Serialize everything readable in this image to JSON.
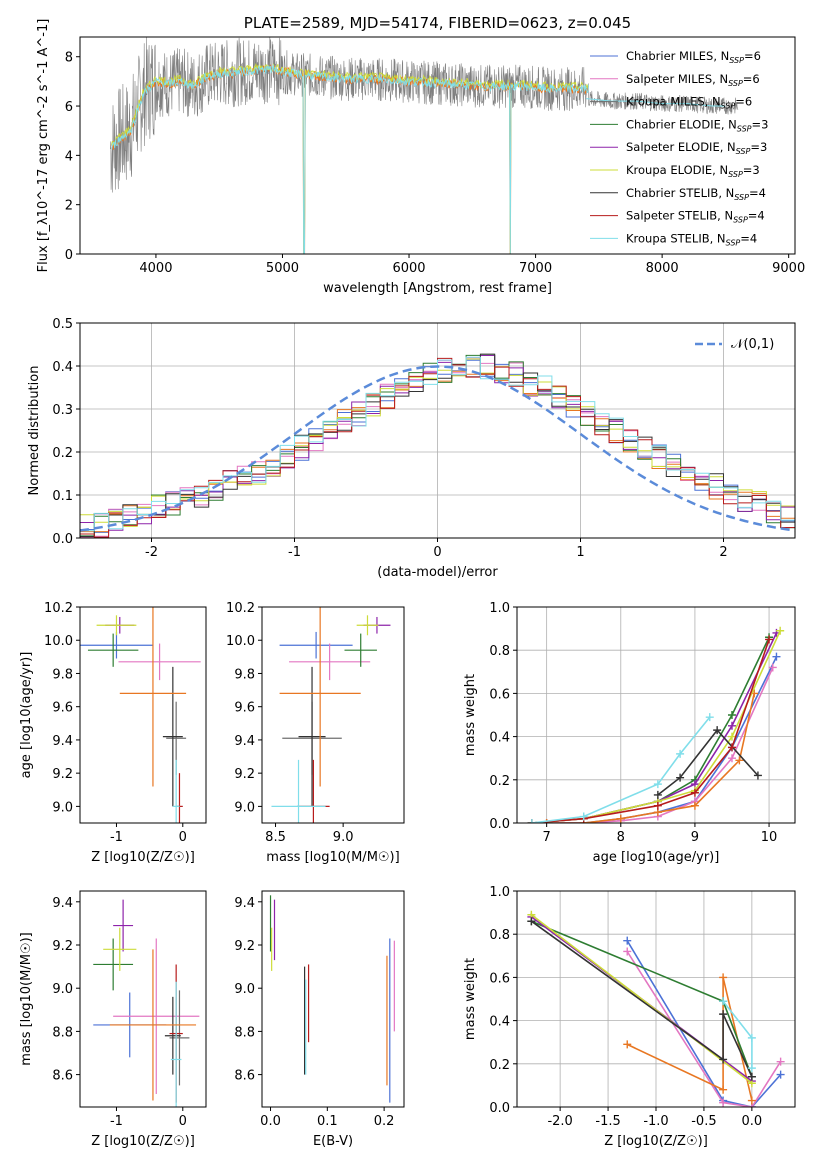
{
  "colors": {
    "chab_miles": "#4c72d6",
    "salp_miles": "#e377c2",
    "krou_miles": "#6f6f6f",
    "chab_elodie": "#2e7d32",
    "salp_elodie": "#8e24aa",
    "krou_elodie": "#cddc39",
    "chab_stelib": "#333333",
    "salp_stelib": "#b71c1c",
    "krou_stelib": "#80deea",
    "data": "#7f7f7f",
    "normal": "#5b8bd9",
    "orange": "#e87722"
  },
  "chart_data": [
    {
      "type": "line",
      "title": "PLATE=2589, MJD=54174, FIBERID=0623, z=0.045",
      "xlabel": "wavelength [Angstrom, rest frame]",
      "ylabel": "Flux [f_λ10^-17 erg cm^-2 s^-1 A^-1]",
      "xlim": [
        3400,
        9050
      ],
      "ylim": [
        0,
        8.8
      ],
      "xticks": [
        4000,
        5000,
        6000,
        7000,
        8000,
        9000
      ],
      "yticks": [
        0,
        2,
        4,
        6,
        8
      ],
      "legend": [
        {
          "name": "Chabrier MILES, N",
          "sub": "SSP",
          "eq": "=6",
          "color_key": "chab_miles"
        },
        {
          "name": "Salpeter MILES, N",
          "sub": "SSP",
          "eq": "=6",
          "color_key": "salp_miles"
        },
        {
          "name": "Kroupa MILES, N",
          "sub": "SSP",
          "eq": "=6",
          "color_key": "krou_miles"
        },
        {
          "name": "Chabrier ELODIE, N",
          "sub": "SSP",
          "eq": "=3",
          "color_key": "chab_elodie"
        },
        {
          "name": "Salpeter ELODIE, N",
          "sub": "SSP",
          "eq": "=3",
          "color_key": "salp_elodie"
        },
        {
          "name": "Kroupa ELODIE, N",
          "sub": "SSP",
          "eq": "=3",
          "color_key": "krou_elodie"
        },
        {
          "name": "Chabrier STELIB, N",
          "sub": "SSP",
          "eq": "=4",
          "color_key": "chab_stelib"
        },
        {
          "name": "Salpeter STELIB, N",
          "sub": "SSP",
          "eq": "=4",
          "color_key": "salp_stelib"
        },
        {
          "name": "Kroupa STELIB, N",
          "sub": "SSP",
          "eq": "=4",
          "color_key": "krou_stelib"
        }
      ],
      "model_curve": {
        "x": [
          3650,
          3700,
          3800,
          3900,
          4000,
          4100,
          4200,
          4300,
          4400,
          4500,
          4700,
          4900,
          5100,
          5300,
          5500,
          5700,
          6000,
          6300,
          6600,
          6900,
          7100,
          7300,
          7420
        ],
        "y": [
          4.3,
          4.6,
          5.0,
          6.5,
          7.0,
          6.9,
          7.0,
          6.8,
          7.2,
          7.3,
          7.4,
          7.5,
          7.3,
          7.2,
          7.1,
          7.1,
          7.0,
          6.9,
          6.8,
          6.8,
          6.7,
          6.7,
          6.7
        ]
      },
      "model_dips": [
        [
          5170,
          0.0
        ],
        [
          6800,
          0.0
        ],
        [
          7430,
          0.3
        ]
      ],
      "extended_curve": {
        "x": [
          7400,
          7600,
          7800,
          8000,
          8200,
          8400,
          8500
        ],
        "y": [
          6.3,
          6.2,
          6.2,
          6.1,
          6.1,
          6.0,
          6.0
        ]
      },
      "data_range": [
        3640,
        8600
      ]
    },
    {
      "type": "bar",
      "xlabel": "(data-model)/error",
      "ylabel": "Normed distribution",
      "xlim": [
        -2.5,
        2.5
      ],
      "ylim": [
        0,
        0.5
      ],
      "xticks": [
        -2,
        -1,
        0,
        1,
        2
      ],
      "yticks": [
        0.0,
        0.1,
        0.2,
        0.3,
        0.4,
        0.5
      ],
      "legend_label": "𝒩(0,1)",
      "bin_width": 0.1,
      "bin_start": -2.5,
      "hist": [
        0.03,
        0.03,
        0.04,
        0.05,
        0.06,
        0.07,
        0.08,
        0.09,
        0.1,
        0.11,
        0.13,
        0.14,
        0.15,
        0.17,
        0.19,
        0.21,
        0.23,
        0.25,
        0.27,
        0.29,
        0.31,
        0.33,
        0.35,
        0.36,
        0.38,
        0.39,
        0.4,
        0.4,
        0.4,
        0.39,
        0.38,
        0.36,
        0.35,
        0.33,
        0.31,
        0.29,
        0.27,
        0.25,
        0.23,
        0.21,
        0.19,
        0.17,
        0.15,
        0.13,
        0.12,
        0.1,
        0.09,
        0.08,
        0.06,
        0.05,
        0.04
      ]
    },
    {
      "type": "scatter",
      "xlabel": "Z [log10(Z/Z☉)]",
      "ylabel": "age [log10(age/yr)]",
      "xlim": [
        -1.55,
        0.35
      ],
      "ylim": [
        8.9,
        10.2
      ],
      "xticks": [
        -1,
        0
      ],
      "yticks": [
        9.0,
        9.2,
        9.4,
        9.6,
        9.8,
        10.0,
        10.2
      ],
      "points": [
        {
          "x": -1.0,
          "y": 9.97,
          "xerr": 0.55,
          "yerr": 0.08,
          "c": "chab_miles"
        },
        {
          "x": -0.35,
          "y": 9.87,
          "xerr": 0.62,
          "yerr": 0.11,
          "c": "salp_miles"
        },
        {
          "x": -0.1,
          "y": 9.41,
          "xerr": 0.15,
          "yerr": 0.22,
          "c": "krou_miles"
        },
        {
          "x": -1.05,
          "y": 9.94,
          "xerr": 0.38,
          "yerr": 0.1,
          "c": "chab_elodie"
        },
        {
          "x": -0.95,
          "y": 10.09,
          "xerr": 0.22,
          "yerr": 0.05,
          "c": "salp_elodie"
        },
        {
          "x": -1.0,
          "y": 10.09,
          "xerr": 0.3,
          "yerr": 0.06,
          "c": "krou_elodie"
        },
        {
          "x": -0.15,
          "y": 9.42,
          "xerr": 0.15,
          "yerr": 0.42,
          "c": "chab_stelib"
        },
        {
          "x": -0.05,
          "y": 9.0,
          "xerr": 0.05,
          "yerr": 0.2,
          "c": "salp_stelib"
        },
        {
          "x": -0.1,
          "y": 9.0,
          "xerr": 0.05,
          "yerr": 0.28,
          "c": "krou_stelib"
        },
        {
          "x": -0.45,
          "y": 9.68,
          "xerr": 0.5,
          "yerr": 0.56,
          "c": "orange"
        }
      ]
    },
    {
      "type": "scatter",
      "xlabel": "mass [log10(M/M☉)]",
      "ylabel": "",
      "xlim": [
        8.4,
        9.45
      ],
      "ylim": [
        8.9,
        10.2
      ],
      "xticks": [
        8.5,
        9.0
      ],
      "yticks": [
        9.0,
        9.2,
        9.4,
        9.6,
        9.8,
        10.0,
        10.2
      ],
      "points": [
        {
          "x": 8.8,
          "y": 9.97,
          "xerr": 0.27,
          "yerr": 0.08,
          "c": "chab_miles"
        },
        {
          "x": 8.9,
          "y": 9.87,
          "xerr": 0.3,
          "yerr": 0.11,
          "c": "salp_miles"
        },
        {
          "x": 8.77,
          "y": 9.41,
          "xerr": 0.22,
          "yerr": 0.22,
          "c": "krou_miles"
        },
        {
          "x": 9.13,
          "y": 9.94,
          "xerr": 0.12,
          "yerr": 0.1,
          "c": "chab_elodie"
        },
        {
          "x": 9.25,
          "y": 10.09,
          "xerr": 0.1,
          "yerr": 0.05,
          "c": "salp_elodie"
        },
        {
          "x": 9.18,
          "y": 10.09,
          "xerr": 0.08,
          "yerr": 0.06,
          "c": "krou_elodie"
        },
        {
          "x": 8.77,
          "y": 9.42,
          "xerr": 0.1,
          "yerr": 0.42,
          "c": "chab_stelib"
        },
        {
          "x": 8.78,
          "y": 9.0,
          "xerr": 0.12,
          "yerr": 0.28,
          "c": "salp_stelib"
        },
        {
          "x": 8.67,
          "y": 9.0,
          "xerr": 0.2,
          "yerr": 0.28,
          "c": "krou_stelib"
        },
        {
          "x": 8.83,
          "y": 9.68,
          "xerr": 0.3,
          "yerr": 0.56,
          "c": "orange"
        }
      ]
    },
    {
      "type": "line",
      "xlabel": "age [log10(age/yr)]",
      "ylabel": "mass weight",
      "xlim": [
        6.6,
        10.35
      ],
      "ylim": [
        0,
        1
      ],
      "xticks": [
        7,
        8,
        9,
        10
      ],
      "yticks": [
        0.0,
        0.2,
        0.4,
        0.6,
        0.8,
        1.0
      ],
      "series": [
        {
          "c": "chab_miles",
          "x": [
            6.8,
            7.0,
            7.5,
            8.0,
            8.5,
            9.0,
            9.5,
            10.1
          ],
          "y": [
            0.0,
            0.0,
            0.0,
            0.02,
            0.05,
            0.1,
            0.35,
            0.77
          ]
        },
        {
          "c": "salp_miles",
          "x": [
            6.8,
            7.0,
            7.5,
            8.0,
            8.5,
            9.0,
            9.5,
            10.05
          ],
          "y": [
            0.0,
            0.0,
            0.0,
            0.01,
            0.03,
            0.1,
            0.3,
            0.72
          ]
        },
        {
          "c": "orange",
          "x": [
            6.8,
            7.0,
            7.5,
            8.0,
            8.5,
            9.0,
            9.6,
            9.8
          ],
          "y": [
            0.0,
            0.0,
            0.0,
            0.02,
            0.05,
            0.08,
            0.29,
            0.6
          ]
        },
        {
          "c": "chab_elodie",
          "x": [
            6.8,
            7.5,
            8.5,
            9.0,
            9.5,
            10.0
          ],
          "y": [
            0.0,
            0.02,
            0.1,
            0.2,
            0.5,
            0.86
          ]
        },
        {
          "c": "salp_elodie",
          "x": [
            6.8,
            7.5,
            8.5,
            9.0,
            9.5,
            10.1
          ],
          "y": [
            0.0,
            0.02,
            0.1,
            0.18,
            0.45,
            0.88
          ]
        },
        {
          "c": "krou_elodie",
          "x": [
            6.8,
            7.5,
            8.5,
            9.0,
            9.5,
            10.15
          ],
          "y": [
            0.0,
            0.02,
            0.1,
            0.15,
            0.4,
            0.89
          ]
        },
        {
          "c": "chab_stelib",
          "x": [
            8.5,
            8.8,
            9.3,
            9.85
          ],
          "y": [
            0.13,
            0.21,
            0.43,
            0.22
          ]
        },
        {
          "c": "salp_stelib",
          "x": [
            6.8,
            7.5,
            8.5,
            9.0,
            9.5,
            10.0
          ],
          "y": [
            0.0,
            0.02,
            0.08,
            0.14,
            0.35,
            0.85
          ]
        },
        {
          "c": "krou_stelib",
          "x": [
            6.8,
            7.5,
            8.5,
            8.8,
            9.2
          ],
          "y": [
            0.0,
            0.03,
            0.18,
            0.32,
            0.49
          ]
        }
      ]
    },
    {
      "type": "scatter",
      "xlabel": "Z [log10(Z/Z☉)]",
      "ylabel": "mass [log10(M/M☉)]",
      "xlim": [
        -1.55,
        0.35
      ],
      "ylim": [
        8.45,
        9.45
      ],
      "xticks": [
        -1,
        0
      ],
      "yticks": [
        8.6,
        8.8,
        9.0,
        9.2,
        9.4
      ],
      "points": [
        {
          "x": -0.8,
          "y": 8.83,
          "xerr": 0.55,
          "yerr": 0.15,
          "c": "chab_miles"
        },
        {
          "x": -0.4,
          "y": 8.87,
          "xerr": 0.65,
          "yerr": 0.36,
          "c": "salp_miles"
        },
        {
          "x": -0.05,
          "y": 8.77,
          "xerr": 0.15,
          "yerr": 0.22,
          "c": "krou_miles"
        },
        {
          "x": -1.05,
          "y": 9.11,
          "xerr": 0.3,
          "yerr": 0.12,
          "c": "chab_elodie"
        },
        {
          "x": -0.9,
          "y": 9.29,
          "xerr": 0.15,
          "yerr": 0.12,
          "c": "salp_elodie"
        },
        {
          "x": -0.95,
          "y": 9.18,
          "xerr": 0.25,
          "yerr": 0.1,
          "c": "krou_elodie"
        },
        {
          "x": -0.15,
          "y": 8.78,
          "xerr": 0.12,
          "yerr": 0.18,
          "c": "chab_stelib"
        },
        {
          "x": -0.1,
          "y": 8.79,
          "xerr": 0.1,
          "yerr": 0.32,
          "c": "salp_stelib"
        },
        {
          "x": -0.1,
          "y": 8.67,
          "xerr": 0.08,
          "yerr": 0.36,
          "c": "krou_stelib"
        },
        {
          "x": -0.45,
          "y": 8.83,
          "xerr": 0.65,
          "yerr": 0.35,
          "c": "orange"
        }
      ]
    },
    {
      "type": "scatter",
      "xlabel": "E(B-V)",
      "ylabel": "",
      "xlim": [
        -0.015,
        0.235
      ],
      "ylim": [
        8.45,
        9.45
      ],
      "xticks": [
        0.0,
        0.1,
        0.2
      ],
      "yticks": [
        8.6,
        8.8,
        9.0,
        9.2,
        9.4
      ],
      "points": [
        {
          "x": 0.0,
          "y": 9.3,
          "yerr": 0.13,
          "c": "chab_elodie"
        },
        {
          "x": 0.007,
          "y": 9.27,
          "yerr": 0.14,
          "c": "salp_elodie"
        },
        {
          "x": 0.002,
          "y": 9.18,
          "yerr": 0.1,
          "c": "krou_elodie"
        },
        {
          "x": 0.06,
          "y": 8.85,
          "yerr": 0.25,
          "c": "chab_stelib"
        },
        {
          "x": 0.067,
          "y": 8.93,
          "yerr": 0.18,
          "c": "salp_stelib"
        },
        {
          "x": 0.062,
          "y": 8.82,
          "yerr": 0.22,
          "c": "krou_stelib"
        },
        {
          "x": 0.21,
          "y": 8.85,
          "yerr": 0.38,
          "c": "chab_miles"
        },
        {
          "x": 0.218,
          "y": 9.01,
          "yerr": 0.21,
          "c": "salp_miles"
        },
        {
          "x": 0.205,
          "y": 8.85,
          "yerr": 0.3,
          "c": "orange"
        }
      ]
    },
    {
      "type": "line",
      "xlabel": "Z [log10(Z/Z☉)]",
      "ylabel": "mass weight",
      "xlim": [
        -2.45,
        0.45
      ],
      "ylim": [
        0,
        1
      ],
      "xticks": [
        -2.0,
        -1.5,
        -1.0,
        -0.5,
        0.0
      ],
      "yticks": [
        0.0,
        0.2,
        0.4,
        0.6,
        0.8,
        1.0
      ],
      "series": [
        {
          "c": "chab_miles",
          "x": [
            -1.3,
            -0.3,
            0.0,
            0.3
          ],
          "y": [
            0.77,
            0.03,
            0.0,
            0.15
          ]
        },
        {
          "c": "salp_miles",
          "x": [
            -1.3,
            -0.3,
            0.0,
            0.3
          ],
          "y": [
            0.72,
            0.02,
            0.0,
            0.21
          ]
        },
        {
          "c": "orange",
          "x": [
            -1.3,
            -0.3,
            -0.3,
            0.0
          ],
          "y": [
            0.29,
            0.08,
            0.6,
            0.03
          ]
        },
        {
          "c": "chab_elodie",
          "x": [
            -2.3,
            -0.3,
            0.0
          ],
          "y": [
            0.86,
            0.49,
            0.14
          ]
        },
        {
          "c": "salp_elodie",
          "x": [
            -2.3,
            0.0
          ],
          "y": [
            0.88,
            0.12
          ]
        },
        {
          "c": "krou_elodie",
          "x": [
            -2.3,
            0.0
          ],
          "y": [
            0.89,
            0.11
          ]
        },
        {
          "c": "chab_stelib",
          "x": [
            -2.3,
            -0.3,
            -0.3,
            0.0
          ],
          "y": [
            0.86,
            0.22,
            0.43,
            0.14
          ]
        },
        {
          "c": "krou_stelib",
          "x": [
            -0.3,
            0.0,
            0.0
          ],
          "y": [
            0.49,
            0.32,
            0.18
          ]
        }
      ]
    }
  ]
}
